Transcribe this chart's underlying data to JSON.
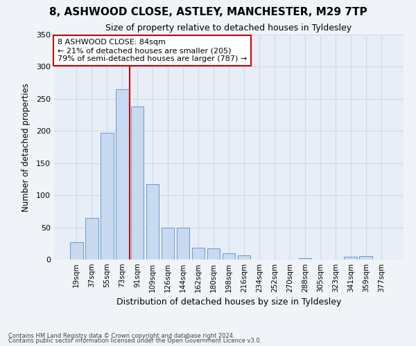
{
  "title1": "8, ASHWOOD CLOSE, ASTLEY, MANCHESTER, M29 7TP",
  "title2": "Size of property relative to detached houses in Tyldesley",
  "xlabel": "Distribution of detached houses by size in Tyldesley",
  "ylabel": "Number of detached properties",
  "categories": [
    "19sqm",
    "37sqm",
    "55sqm",
    "73sqm",
    "91sqm",
    "109sqm",
    "126sqm",
    "144sqm",
    "162sqm",
    "180sqm",
    "198sqm",
    "216sqm",
    "234sqm",
    "252sqm",
    "270sqm",
    "288sqm",
    "305sqm",
    "323sqm",
    "341sqm",
    "359sqm",
    "377sqm"
  ],
  "values": [
    27,
    65,
    197,
    265,
    238,
    117,
    50,
    50,
    18,
    17,
    10,
    7,
    0,
    0,
    0,
    2,
    0,
    0,
    4,
    5,
    0
  ],
  "bar_color": "#c9d9f0",
  "bar_edge_color": "#6699cc",
  "vline_x": 3.5,
  "vline_color": "#cc0000",
  "annotation_text": "8 ASHWOOD CLOSE: 84sqm\n← 21% of detached houses are smaller (205)\n79% of semi-detached houses are larger (787) →",
  "annotation_box_color": "#ffffff",
  "annotation_box_edge": "#cc0000",
  "footer1": "Contains HM Land Registry data © Crown copyright and database right 2024.",
  "footer2": "Contains public sector information licensed under the Open Government Licence v3.0.",
  "ylim": [
    0,
    350
  ],
  "grid_color": "#d0d8e8",
  "bg_color": "#e8eef8",
  "fig_bg_color": "#f0f4f8"
}
